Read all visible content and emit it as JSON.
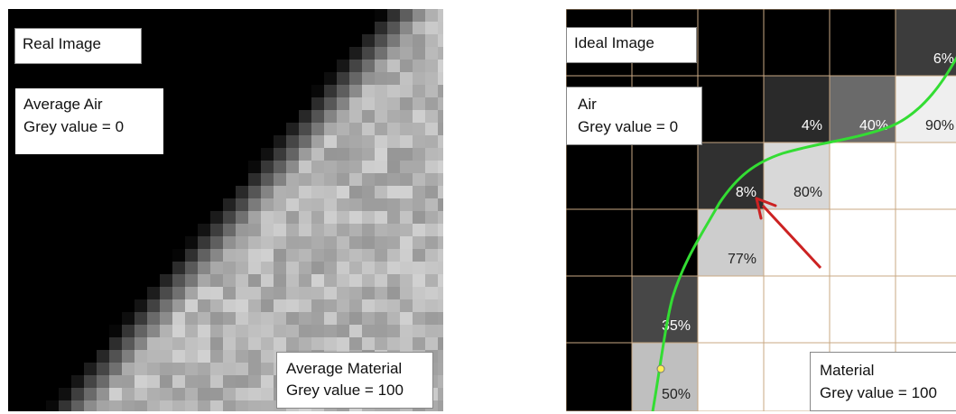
{
  "real_panel": {
    "title": "Real Image",
    "air_label": {
      "line1": "Average Air",
      "line2": "Grey value = 0"
    },
    "material_label": {
      "line1": "Average Material",
      "line2": "Grey value = 100"
    }
  },
  "ideal_panel": {
    "title": "Ideal Image",
    "air_label": {
      "line1": "Air",
      "line2": "Grey value = 0"
    },
    "material_label": {
      "line1": "Material",
      "line2": "Grey value = 100"
    },
    "cells": [
      {
        "row": 0,
        "col": 5,
        "percent": "6%",
        "fill": "#3c3c3c"
      },
      {
        "row": 1,
        "col": 3,
        "percent": "4%",
        "fill": "#2a2a2a"
      },
      {
        "row": 1,
        "col": 4,
        "percent": "40%",
        "fill": "#6a6a6a"
      },
      {
        "row": 1,
        "col": 5,
        "percent": "90%",
        "fill": "#efefef"
      },
      {
        "row": 2,
        "col": 2,
        "percent": "8%",
        "fill": "#303030"
      },
      {
        "row": 2,
        "col": 3,
        "percent": "80%",
        "fill": "#d8d8d8"
      },
      {
        "row": 3,
        "col": 2,
        "percent": "77%",
        "fill": "#cdcdcd"
      },
      {
        "row": 4,
        "col": 1,
        "percent": "35%",
        "fill": "#474747"
      },
      {
        "row": 5,
        "col": 1,
        "percent": "50%",
        "fill": "#bfbfbf"
      }
    ],
    "colors": {
      "boundary_line": "#33dd33",
      "arrow": "#cc2222",
      "grid_line": "#c9a883",
      "marker": "#ffee55"
    }
  }
}
